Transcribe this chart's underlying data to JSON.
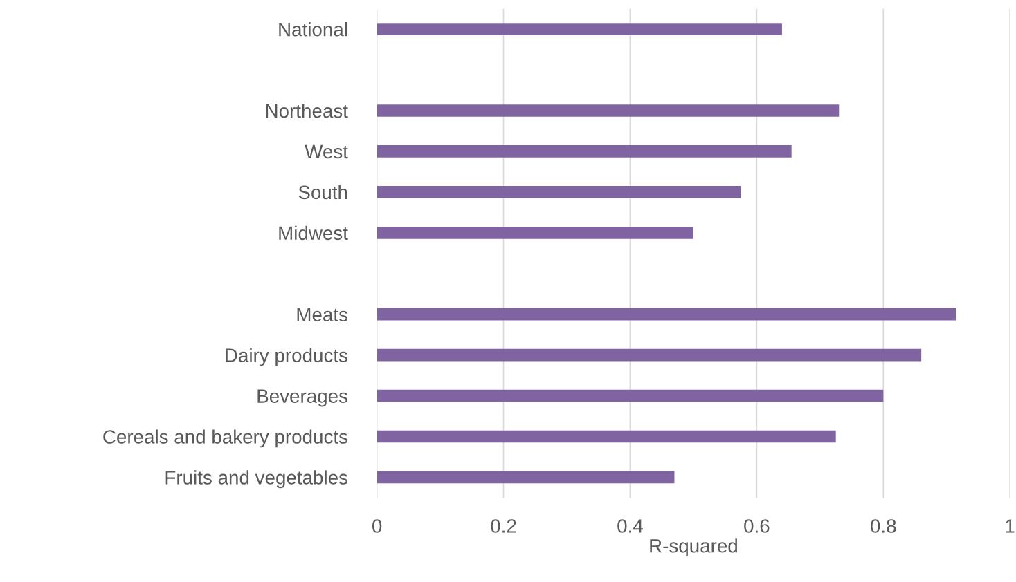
{
  "chart_data": {
    "type": "bar",
    "orientation": "horizontal",
    "xlabel": "R-squared",
    "categories": [
      "National",
      null,
      "Northeast",
      "West",
      "South",
      "Midwest",
      null,
      "Meats",
      "Dairy products",
      "Beverages",
      "Cereals and bakery products",
      "Fruits and vegetables"
    ],
    "values": [
      0.64,
      null,
      0.73,
      0.655,
      0.575,
      0.5,
      null,
      0.915,
      0.86,
      0.8,
      0.725,
      0.47
    ],
    "color": "#8064a2",
    "xlim": [
      0,
      1
    ],
    "xticks": [
      0,
      0.2,
      0.4,
      0.6,
      0.8,
      1
    ],
    "grid": "x"
  }
}
